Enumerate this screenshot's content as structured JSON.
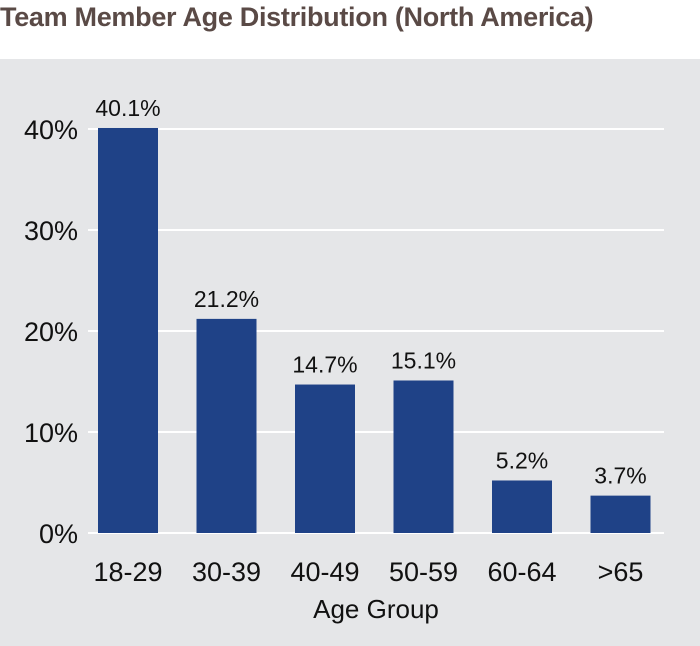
{
  "title": "Team Member Age Distribution (North America)",
  "colors": {
    "bar": "#1f4287",
    "panel_background": "#e5e6e8",
    "gridline": "#ffffff",
    "title_text": "#5a4a46",
    "text": "#111111"
  },
  "chart_data": {
    "type": "bar",
    "title": "Team Member Age Distribution (North America)",
    "xlabel": "Age Group",
    "ylabel": "",
    "categories": [
      "18-29",
      "30-39",
      "40-49",
      "50-59",
      "60-64",
      ">65"
    ],
    "values": [
      40.1,
      21.2,
      14.7,
      15.1,
      5.2,
      3.7
    ],
    "data_labels": [
      "40.1%",
      "21.2%",
      "14.7%",
      "15.1%",
      "5.2%",
      "3.7%"
    ],
    "yticks": [
      0,
      10,
      20,
      30,
      40
    ],
    "ytick_labels": [
      "0%",
      "10%",
      "20%",
      "30%",
      "40%"
    ],
    "ylim": [
      0,
      40
    ],
    "grid": true,
    "legend": "none"
  }
}
